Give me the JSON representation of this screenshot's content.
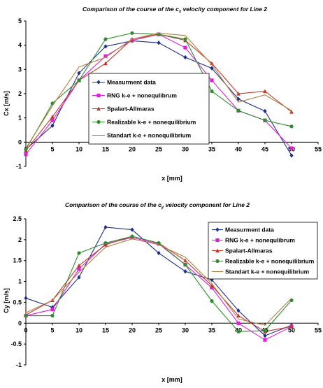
{
  "chart_data": [
    {
      "type": "line",
      "title_main": "Comparison of the course of the c",
      "title_sub": "x",
      "title_rest": " velocity component for Line 2",
      "xlabel": "x [mm]",
      "ylabel": "Cx [m/s]",
      "xlim": [
        0,
        55
      ],
      "ylim": [
        -1,
        5
      ],
      "xticks": [
        "0",
        "5",
        "10",
        "15",
        "20",
        "25",
        "30",
        "35",
        "40",
        "45",
        "50",
        "55"
      ],
      "yticks": [
        "-1",
        "0",
        "1",
        "2",
        "3",
        "4",
        "5"
      ],
      "grid": false,
      "legend_position": "center-right",
      "series": [
        {
          "name": "Measurment data",
          "color": "#1f2f8a",
          "marker": "diamond",
          "x": [
            0,
            5,
            10,
            15,
            20,
            25,
            30,
            35,
            40,
            45,
            50
          ],
          "y": [
            -0.3,
            0.68,
            2.85,
            3.95,
            4.18,
            4.1,
            3.5,
            3.05,
            1.78,
            1.28,
            -0.55
          ]
        },
        {
          "name": "RNG k-e + nonequlibrum",
          "color": "#e020d8",
          "marker": "square",
          "x": [
            0,
            5,
            10,
            15,
            20,
            25,
            30,
            35,
            40,
            45,
            50
          ],
          "y": [
            -0.5,
            0.9,
            2.55,
            3.55,
            4.2,
            4.45,
            3.9,
            2.55,
            1.3,
            0.9,
            -0.25
          ]
        },
        {
          "name": "Spalart-Allmaras",
          "color": "#c0392b",
          "marker": "triangle",
          "x": [
            0,
            5,
            10,
            15,
            20,
            25,
            30,
            35,
            40,
            45,
            50
          ],
          "y": [
            -0.35,
            1.05,
            2.55,
            3.25,
            4.25,
            4.45,
            4.2,
            3.25,
            2.0,
            2.1,
            1.25
          ]
        },
        {
          "name": "Realizable k-e + nonequilibrium",
          "color": "#2e8b2e",
          "marker": "circle",
          "x": [
            0,
            5,
            10,
            15,
            20,
            25,
            30,
            35,
            40,
            45,
            50
          ],
          "y": [
            -0.3,
            1.6,
            2.55,
            4.25,
            4.5,
            4.45,
            4.25,
            2.1,
            1.3,
            0.9,
            0.65
          ]
        },
        {
          "name": "Standart k-e + nonequilibrium",
          "color": "#b08040",
          "marker": "none",
          "x": [
            0,
            5,
            10,
            15,
            20,
            25,
            30,
            35,
            40,
            45,
            50
          ],
          "y": [
            -0.25,
            1.5,
            3.1,
            3.5,
            4.25,
            4.5,
            4.4,
            3.2,
            1.65,
            1.95,
            1.3
          ]
        }
      ]
    },
    {
      "type": "line",
      "title_main": "Comparison of the course of the c",
      "title_sub": "y",
      "title_rest": " velocity component for Line 2",
      "xlabel": "x [mm]",
      "ylabel": "Cy [m/s]",
      "xlim": [
        0,
        55
      ],
      "ylim": [
        -1,
        2.5
      ],
      "xticks": [
        "0",
        "5",
        "10",
        "15",
        "20",
        "25",
        "30",
        "35",
        "40",
        "45",
        "50",
        "55"
      ],
      "yticks": [
        "-1",
        "-0.5",
        "0",
        "0.5",
        "1",
        "1.5",
        "2",
        "2.5"
      ],
      "grid": false,
      "legend_position": "top-right",
      "series": [
        {
          "name": "Measurment data",
          "color": "#1f2f8a",
          "marker": "diamond",
          "x": [
            0,
            5,
            10,
            15,
            20,
            25,
            30,
            35,
            40,
            45,
            50
          ],
          "y": [
            0.6,
            0.38,
            1.1,
            2.3,
            2.24,
            1.68,
            1.24,
            1.04,
            0.3,
            -0.3,
            -0.05
          ]
        },
        {
          "name": "RNG k-e + nonequlibrum",
          "color": "#e020d8",
          "marker": "square",
          "x": [
            0,
            5,
            10,
            15,
            20,
            25,
            30,
            35,
            40,
            45,
            50
          ],
          "y": [
            0.18,
            0.33,
            1.3,
            1.9,
            2.05,
            1.9,
            1.4,
            0.85,
            0.0,
            -0.4,
            -0.08
          ]
        },
        {
          "name": "Spalart-Allmaras",
          "color": "#c0392b",
          "marker": "triangle",
          "x": [
            0,
            5,
            10,
            15,
            20,
            25,
            30,
            35,
            40,
            45,
            50
          ],
          "y": [
            0.2,
            0.55,
            1.38,
            1.88,
            2.08,
            1.92,
            1.5,
            0.9,
            0.18,
            -0.2,
            -0.08
          ]
        },
        {
          "name": "Realizable k-e + nonequilibrium",
          "color": "#2e8b2e",
          "marker": "circle",
          "x": [
            0,
            5,
            10,
            15,
            20,
            25,
            30,
            35,
            40,
            45,
            50
          ],
          "y": [
            0.18,
            0.18,
            1.68,
            1.92,
            2.08,
            1.92,
            1.4,
            0.53,
            -0.2,
            -0.18,
            0.55
          ]
        },
        {
          "name": "Standart k-e + nonequilibrium",
          "color": "#b08040",
          "marker": "none",
          "x": [
            0,
            5,
            10,
            15,
            20,
            25,
            30,
            35,
            40,
            45,
            50
          ],
          "y": [
            0.25,
            0.55,
            1.22,
            1.82,
            2.02,
            1.88,
            1.58,
            0.95,
            0.1,
            -0.05,
            0.6
          ]
        }
      ]
    }
  ]
}
